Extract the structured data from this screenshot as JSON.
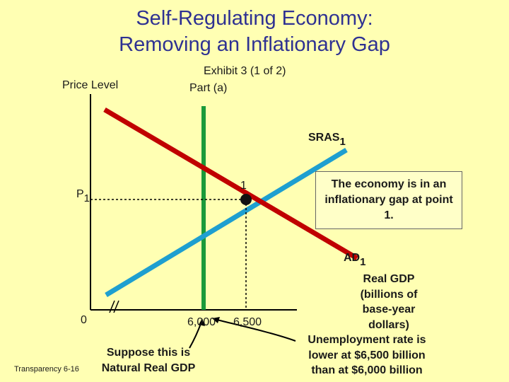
{
  "title_line1": "Self-Regulating Economy:",
  "title_line2": "Removing an Inflationary Gap",
  "exhibit": "Exhibit 3 (1 of 2)",
  "part": "Part (a)",
  "y_axis_label": "Price Level",
  "p1_label": "P",
  "p1_subscript": "1",
  "origin_label": "0",
  "point_label": "1",
  "sras_label": "SRAS",
  "sras_subscript": "1",
  "ad_label": "AD",
  "ad_subscript": "1",
  "tick_6000": "6,000",
  "tick_6500": "6,500",
  "callout_text": "The economy is in an inflationary gap at point 1.",
  "natural_note_line1": "Suppose this is",
  "natural_note_line2": "Natural Real GDP",
  "x_axis_line1": "Real GDP",
  "x_axis_line2": "(billions of",
  "x_axis_line3": "base-year",
  "x_axis_line4": "dollars)",
  "unemployment_line1": "Unemployment rate is",
  "unemployment_line2": "lower at $6,500 billion",
  "unemployment_line3": "than at $6,000 billion",
  "transparency": "Transparency 6-16",
  "colors": {
    "background": "#FFFFB3",
    "title": "#2E3192",
    "ad_curve": "#C00000",
    "sras_curve": "#1E9FD0",
    "lras_line": "#1A9A3A"
  },
  "icons": [
    "axis-break-icon",
    "equilibrium-point-icon"
  ]
}
